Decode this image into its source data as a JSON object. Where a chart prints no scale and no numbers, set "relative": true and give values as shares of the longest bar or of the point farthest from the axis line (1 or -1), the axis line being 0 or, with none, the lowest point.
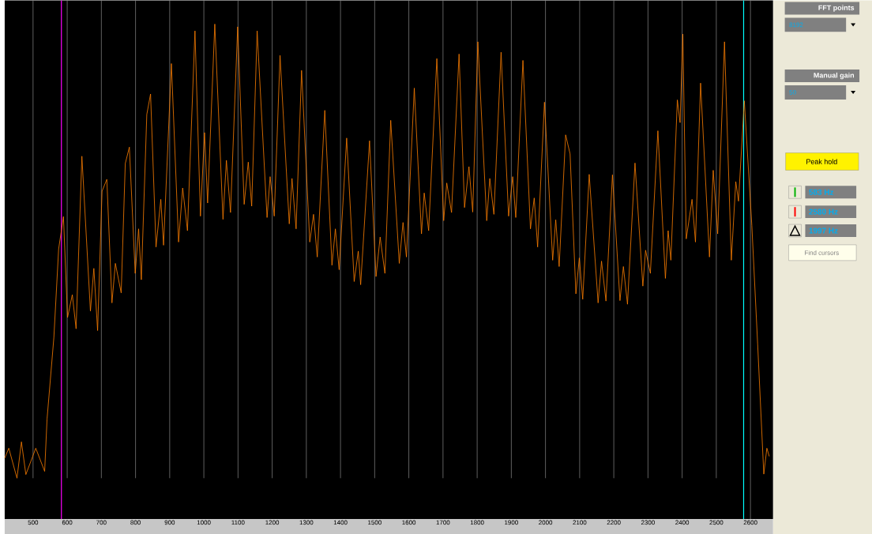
{
  "chart_data": {
    "type": "line",
    "relative": true,
    "color": "#ff8000",
    "grid": "x",
    "xlim": [
      417,
      2666
    ],
    "xticks": [
      500,
      600,
      700,
      800,
      900,
      1000,
      1100,
      1200,
      1300,
      1400,
      1500,
      1600,
      1700,
      1800,
      1900,
      2000,
      2100,
      2200,
      2300,
      2400,
      2500,
      2600
    ],
    "x": [
      417,
      429,
      453,
      466,
      479,
      508,
      534,
      541,
      561,
      575,
      589,
      601,
      615,
      626,
      643,
      668,
      678,
      689,
      702,
      716,
      731,
      741,
      758,
      770,
      782,
      799,
      809,
      817,
      833,
      844,
      860,
      874,
      882,
      905,
      926,
      938,
      952,
      974,
      990,
      1002,
      1011,
      1032,
      1056,
      1066,
      1078,
      1099,
      1118,
      1130,
      1140,
      1156,
      1185,
      1194,
      1206,
      1223,
      1250,
      1258,
      1270,
      1286,
      1310,
      1321,
      1332,
      1354,
      1375,
      1385,
      1396,
      1418,
      1440,
      1452,
      1459,
      1485,
      1504,
      1516,
      1530,
      1547,
      1572,
      1583,
      1593,
      1616,
      1637,
      1645,
      1658,
      1682,
      1702,
      1711,
      1725,
      1747,
      1763,
      1776,
      1787,
      1802,
      1828,
      1837,
      1849,
      1870,
      1892,
      1904,
      1913,
      1934,
      1956,
      1967,
      1977,
      1997,
      2021,
      2030,
      2040,
      2059,
      2072,
      2089,
      2099,
      2109,
      2128,
      2154,
      2164,
      2177,
      2196,
      2218,
      2228,
      2240,
      2262,
      2285,
      2293,
      2307,
      2329,
      2351,
      2359,
      2367,
      2386,
      2394,
      2402,
      2412,
      2429,
      2439,
      2454,
      2480,
      2491,
      2504,
      2524,
      2544,
      2557,
      2565,
      2582,
      2604,
      2621,
      2639,
      2648,
      2655
    ],
    "values": [
      0.044,
      0.066,
      0.0,
      0.08,
      0.008,
      0.066,
      0.015,
      0.13,
      0.31,
      0.505,
      0.576,
      0.354,
      0.404,
      0.329,
      0.709,
      0.368,
      0.462,
      0.325,
      0.632,
      0.658,
      0.386,
      0.473,
      0.408,
      0.693,
      0.729,
      0.451,
      0.549,
      0.437,
      0.801,
      0.846,
      0.509,
      0.614,
      0.513,
      0.913,
      0.52,
      0.639,
      0.545,
      0.985,
      0.577,
      0.761,
      0.606,
      1,
      0.57,
      0.7,
      0.585,
      0.994,
      0.603,
      0.696,
      0.599,
      0.985,
      0.574,
      0.664,
      0.577,
      0.931,
      0.56,
      0.66,
      0.549,
      0.898,
      0.52,
      0.581,
      0.487,
      0.81,
      0.469,
      0.549,
      0.459,
      0.749,
      0.433,
      0.5,
      0.426,
      0.743,
      0.444,
      0.531,
      0.451,
      0.788,
      0.473,
      0.563,
      0.487,
      0.859,
      0.538,
      0.628,
      0.545,
      0.924,
      0.567,
      0.65,
      0.585,
      0.934,
      0.596,
      0.686,
      0.586,
      0.961,
      0.567,
      0.66,
      0.581,
      0.938,
      0.577,
      0.664,
      0.574,
      0.92,
      0.549,
      0.617,
      0.509,
      0.828,
      0.48,
      0.569,
      0.466,
      0.756,
      0.714,
      0.406,
      0.485,
      0.394,
      0.669,
      0.386,
      0.478,
      0.39,
      0.668,
      0.391,
      0.466,
      0.383,
      0.694,
      0.423,
      0.502,
      0.451,
      0.765,
      0.44,
      0.545,
      0.48,
      0.833,
      0.783,
      0.978,
      0.527,
      0.614,
      0.52,
      0.87,
      0.487,
      0.678,
      0.538,
      0.961,
      0.48,
      0.653,
      0.61,
      0.831,
      0.556,
      0.296,
      0.009,
      0.066,
      0.048
    ],
    "ref_lines": [
      {
        "axis": "x",
        "value": 583,
        "color": "#ff00ff"
      },
      {
        "axis": "x",
        "value": 2580,
        "color": "#00ffff"
      }
    ],
    "annotations": [
      "FFT points",
      "8192",
      "Manual gain",
      "50",
      "Peak hold",
      "583 Hz",
      "2580 Hz",
      "1997 Hz",
      "Find cursors"
    ]
  }
}
